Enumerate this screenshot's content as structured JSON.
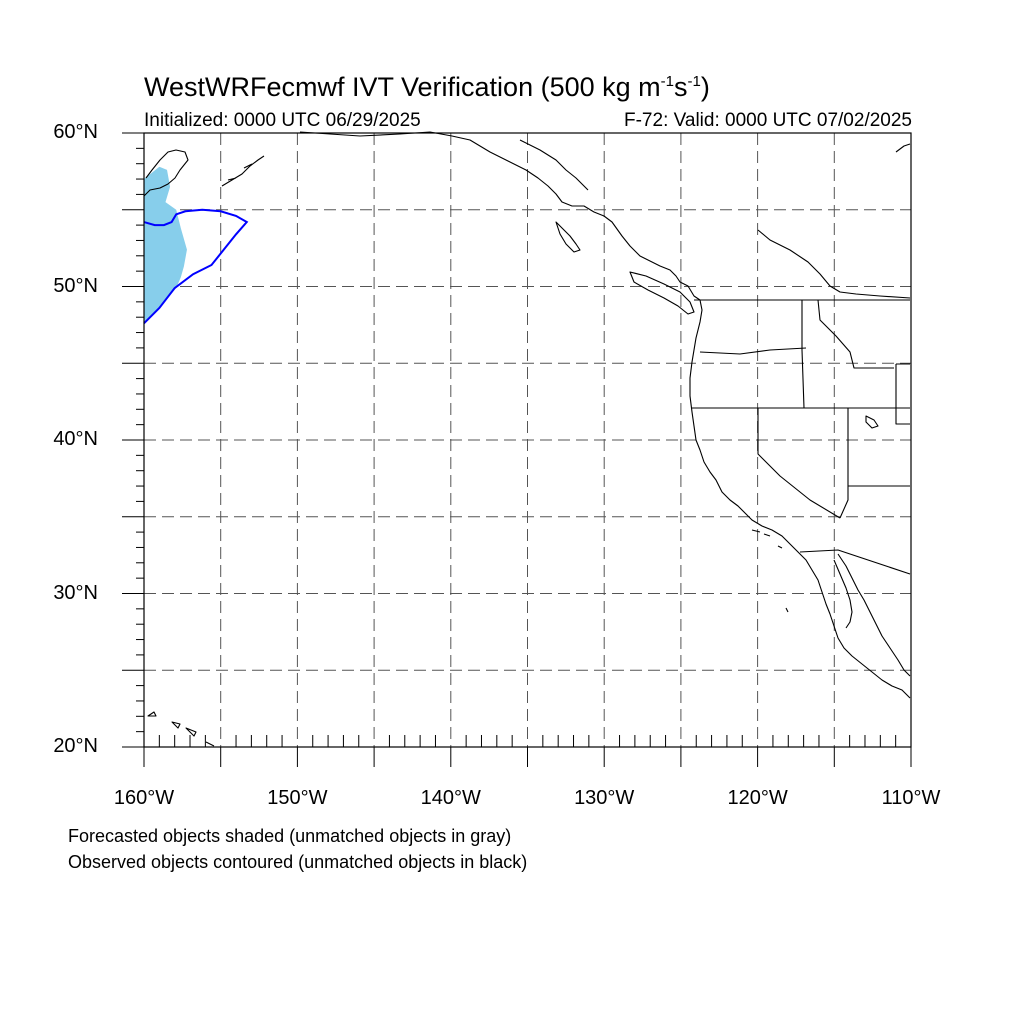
{
  "title": {
    "text": "WestWRFecmwf IVT Verification (500 kg m",
    "exp1": "-1",
    "mid": "s",
    "exp2": "-1",
    "close": ")"
  },
  "init_label": "Initialized: 0000 UTC 06/29/2025",
  "valid_label": "F-72: Valid: 0000 UTC 07/02/2025",
  "captions": [
    "Forecasted objects shaded (unmatched objects in gray)",
    "Observed objects contoured (unmatched objects in black)"
  ],
  "map": {
    "lat_range": [
      20,
      60
    ],
    "lon_range": [
      -160,
      -110
    ],
    "grid": "dashed every 5°",
    "lat_labels": [
      "20°N",
      "30°N",
      "40°N",
      "50°N",
      "60°N"
    ],
    "lon_labels": [
      "160°W",
      "150°W",
      "140°W",
      "130°W",
      "120°W",
      "110°W"
    ],
    "colors": {
      "forecast_shading": "#87ceeb",
      "observed_contour": "#0000ff",
      "coastline": "#000000",
      "grid": "#555555"
    },
    "forecast_object": {
      "lon_lat": [
        [
          -160,
          57
        ],
        [
          -159,
          57.8
        ],
        [
          -158.5,
          57.6
        ],
        [
          -158.3,
          56.5
        ],
        [
          -158.6,
          55.5
        ],
        [
          -157.9,
          55
        ],
        [
          -157.6,
          53.8
        ],
        [
          -157.2,
          52.4
        ],
        [
          -157.4,
          51.3
        ],
        [
          -157.6,
          50.6
        ],
        [
          -157.9,
          49.9
        ],
        [
          -158.4,
          49.3
        ],
        [
          -159,
          48.6
        ],
        [
          -159.7,
          47.9
        ],
        [
          -160,
          47.6
        ]
      ]
    },
    "observed_object": {
      "lon_lat": [
        [
          -160,
          54.2
        ],
        [
          -159.3,
          54
        ],
        [
          -158.7,
          54
        ],
        [
          -158.2,
          54.2
        ],
        [
          -157.9,
          54.7
        ],
        [
          -157.3,
          54.9
        ],
        [
          -156.2,
          55
        ],
        [
          -155,
          54.9
        ],
        [
          -154,
          54.6
        ],
        [
          -153.3,
          54.2
        ],
        [
          -154,
          53.4
        ],
        [
          -154.8,
          52.4
        ],
        [
          -155.6,
          51.4
        ],
        [
          -156.8,
          50.8
        ],
        [
          -158,
          49.9
        ],
        [
          -159,
          48.6
        ],
        [
          -160,
          47.6
        ]
      ]
    }
  }
}
